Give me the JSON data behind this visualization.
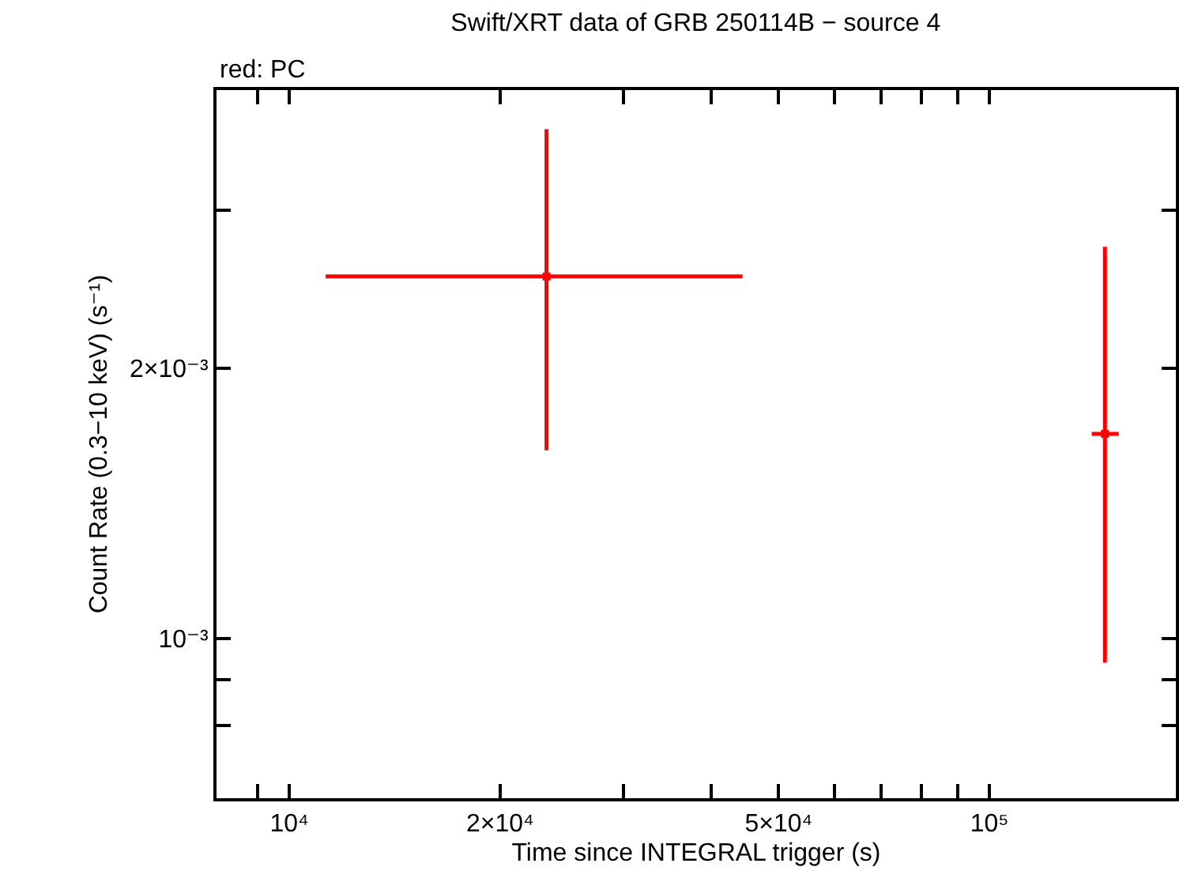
{
  "chart_data": {
    "type": "scatter",
    "title": "Swift/XRT data of GRB 250114B − source 4",
    "xlabel": "Time since INTEGRAL trigger (s)",
    "ylabel": "Count Rate (0.3−10 keV) (s⁻¹)",
    "annotations": [
      "red: PC"
    ],
    "x": [
      23300,
      146200
    ],
    "series": [
      {
        "color": "#ff0000",
        "values": [
          0.00253,
          0.00169
        ],
        "errors": [
          [
            0.00162,
            0.00369
          ],
          [
            0.00094,
            0.00273
          ]
        ],
        "xerrors": [
          [
            11270,
            44400
          ],
          [
            140000,
            153000
          ]
        ]
      }
    ],
    "marker": "square",
    "log": "xy",
    "grid": false,
    "xlim": [
      7870,
      184600
    ],
    "ylim": [
      0.000664,
      0.00408
    ],
    "xticks": [
      {
        "value": 9000,
        "label": null
      },
      {
        "value": 10000,
        "label": "10⁴"
      },
      {
        "value": 20000,
        "label": "2×10⁴"
      },
      {
        "value": 30000,
        "label": null
      },
      {
        "value": 40000,
        "label": null
      },
      {
        "value": 50000,
        "label": "5×10⁴"
      },
      {
        "value": 60000,
        "label": null
      },
      {
        "value": 70000,
        "label": null
      },
      {
        "value": 80000,
        "label": null
      },
      {
        "value": 90000,
        "label": null
      },
      {
        "value": 100000,
        "label": "10⁵"
      }
    ],
    "yticks": [
      {
        "value": 0.0008,
        "label": null
      },
      {
        "value": 0.0009,
        "label": null
      },
      {
        "value": 0.001,
        "label": "10⁻³"
      },
      {
        "value": 0.002,
        "label": "2×10⁻³"
      },
      {
        "value": 0.003,
        "label": null
      }
    ]
  }
}
